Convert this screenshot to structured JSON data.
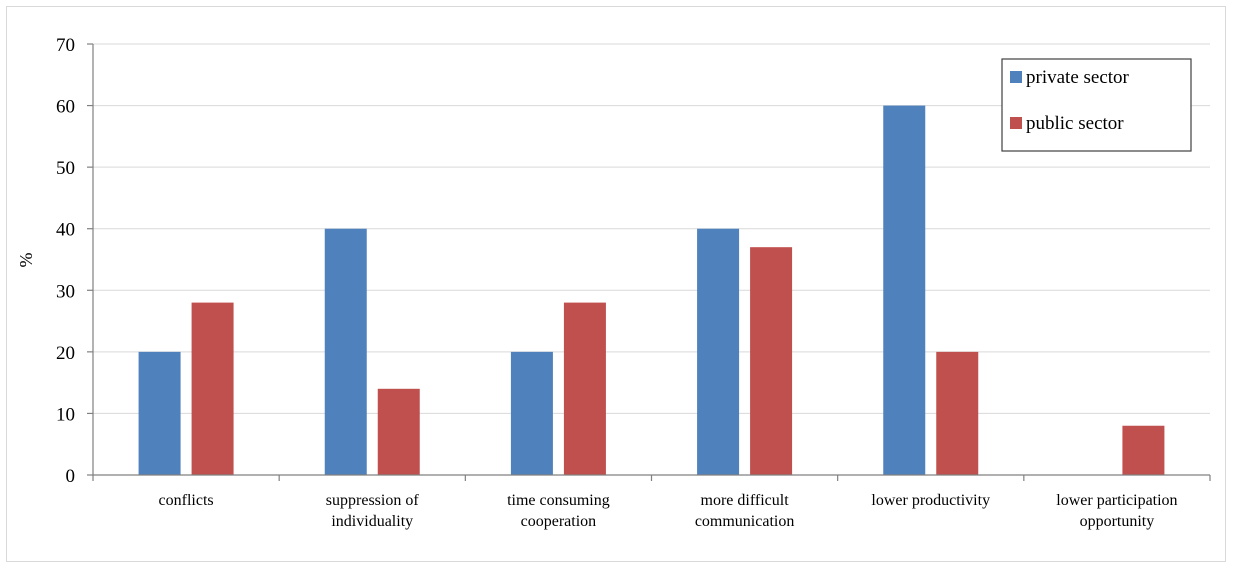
{
  "chart_data": {
    "type": "bar",
    "categories": [
      [
        "conflicts"
      ],
      [
        "suppression of",
        "individuality"
      ],
      [
        "time consuming",
        "cooperation"
      ],
      [
        "more difficult",
        "communication"
      ],
      [
        "lower productivity"
      ],
      [
        "lower participation",
        "opportunity"
      ]
    ],
    "series": [
      {
        "name": "private sector",
        "color": "#4f81bd",
        "values": [
          20,
          40,
          20,
          40,
          60,
          0
        ]
      },
      {
        "name": "public sector",
        "color": "#c0504d",
        "values": [
          28,
          14,
          28,
          37,
          20,
          8
        ]
      }
    ],
    "title": "",
    "xlabel": "",
    "ylabel": "%",
    "ylim": [
      0,
      70
    ],
    "yticks": [
      0,
      10,
      20,
      30,
      40,
      50,
      60,
      70
    ],
    "grid": true,
    "legend_placement": "top-right"
  }
}
